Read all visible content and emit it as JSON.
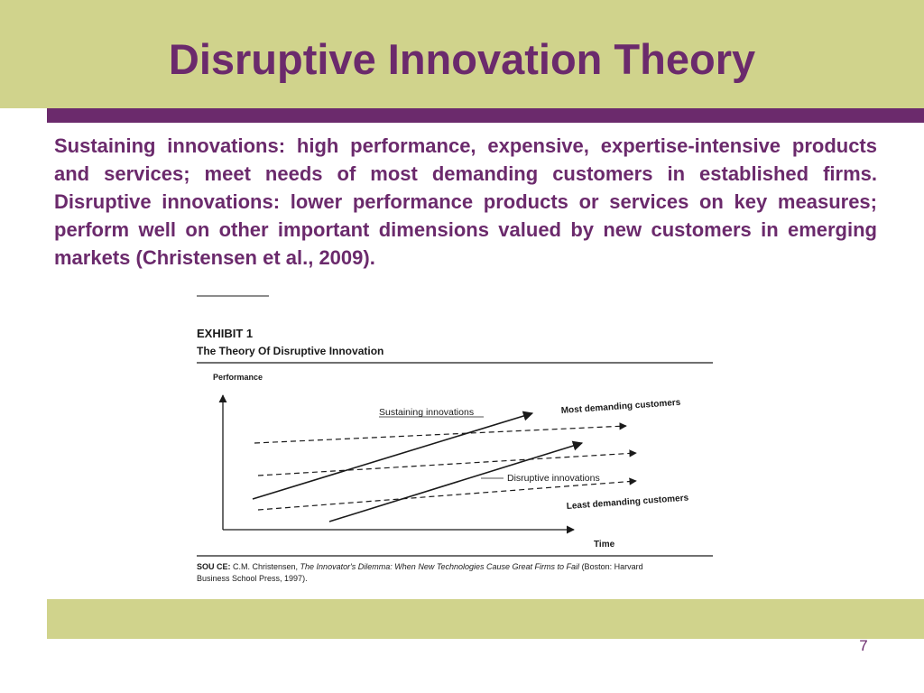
{
  "slide": {
    "title": "Disruptive Innovation Theory",
    "body": "Sustaining innovations: high performance, expensive, expertise-intensive products and services; meet needs of most demanding customers in established firms.  Disruptive innovations: lower performance products or services on key measures; perform well on other important dimensions valued by new customers in emerging markets (Christensen et al., 2009).",
    "page_number": "7"
  },
  "colors": {
    "band": "#d0d38c",
    "accent": "#6b2a6c",
    "figure_ink": "#1a1a1a"
  },
  "exhibit": {
    "label": "EXHIBIT 1",
    "title": "The Theory Of Disruptive Innovation",
    "y_axis_label": "Performance",
    "x_axis_label": "Time",
    "labels": {
      "sustaining": "Sustaining innovations",
      "most_demanding": "Most demanding customers",
      "disruptive": "Disruptive innovations",
      "least_demanding": "Least demanding customers"
    },
    "source_prefix": "SOU  CE:",
    "source_author": " C.M. Christensen, ",
    "source_book": "The Innovator's Dilemma: When New Technologies Cause Great Firms to Fail",
    "source_pub_line1": " (Boston: Harvard",
    "source_pub_line2": "Business School Press, 1997)."
  }
}
